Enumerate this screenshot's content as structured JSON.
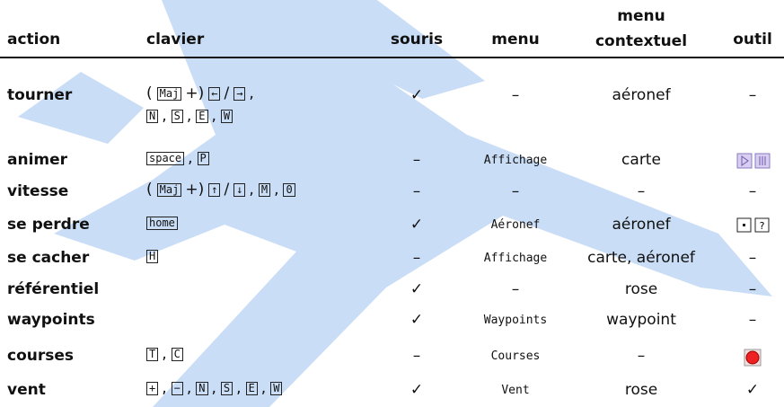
{
  "header": {
    "action": "action",
    "clavier": "clavier",
    "souris": "souris",
    "menu": "menu",
    "contextuel": [
      "menu",
      "contextuel"
    ],
    "outil": "outil"
  },
  "table": {
    "rows": [
      {
        "action": "tourner",
        "clavier": [
          [
            "(",
            {
              "key": "Maj"
            },
            "+)",
            {
              "key": "←"
            },
            "/",
            {
              "key": "→"
            },
            ","
          ],
          [
            {
              "key": "N"
            },
            ",",
            {
              "key": "S"
            },
            ",",
            {
              "key": "E"
            },
            ",",
            {
              "key": "W"
            }
          ]
        ],
        "souris": "✓",
        "menu": "–",
        "contextuel": "aéronef",
        "outil": "–"
      },
      {
        "action": "animer",
        "clavier": [
          [
            {
              "key": "space"
            },
            ",",
            {
              "key": "P"
            }
          ]
        ],
        "souris": "–",
        "menu": "Affichage",
        "contextuel": "carte"
      },
      {
        "action": "vitesse",
        "clavier": [
          [
            "(",
            {
              "key": "Maj"
            },
            "+)",
            {
              "key": "↑"
            },
            "/",
            {
              "key": "↓"
            },
            ",",
            {
              "key": "M"
            },
            ",",
            {
              "key": "0"
            }
          ]
        ],
        "souris": "–",
        "menu": "–",
        "contextuel": "–",
        "outil": "–"
      },
      {
        "action": "se perdre",
        "clavier": [
          [
            {
              "key": "home"
            }
          ]
        ],
        "souris": "✓",
        "menu": "Aéronef",
        "contextuel": "aéronef"
      },
      {
        "action": "se cacher",
        "clavier": [
          [
            {
              "key": "H"
            }
          ]
        ],
        "souris": "–",
        "menu": "Affichage",
        "contextuel": "carte, aéronef",
        "outil": "–"
      },
      {
        "action": "référentiel",
        "clavier": [],
        "souris": "✓",
        "menu": "–",
        "contextuel": "rose",
        "outil": "–"
      },
      {
        "action": "waypoints",
        "clavier": [],
        "souris": "✓",
        "menu": "Waypoints",
        "contextuel": "waypoint",
        "outil": "–"
      },
      {
        "action": "courses",
        "clavier": [
          [
            {
              "key": "T"
            },
            ",",
            {
              "key": "C"
            }
          ]
        ],
        "souris": "–",
        "menu": "Courses",
        "contextuel": "–"
      },
      {
        "action": "vent",
        "clavier": [
          [
            {
              "key": "+"
            },
            ",",
            {
              "key": "−"
            },
            ",",
            {
              "key": "N"
            },
            ",",
            {
              "key": "S"
            },
            ",",
            {
              "key": "E"
            },
            ",",
            {
              "key": "W"
            }
          ]
        ],
        "souris": "✓",
        "menu": "Vent",
        "contextuel": "rose",
        "outil": "✓"
      }
    ]
  }
}
